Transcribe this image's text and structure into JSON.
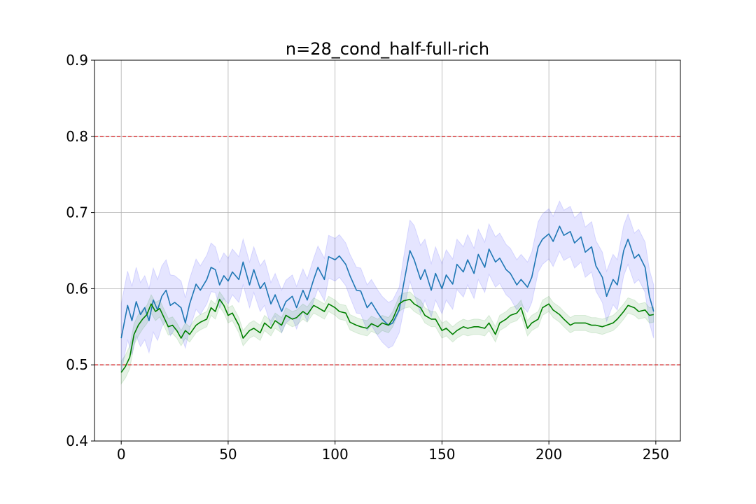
{
  "chart_data": {
    "type": "line",
    "title": "n=28_cond_half-full-rich",
    "xlabel": "",
    "ylabel": "",
    "xlim": [
      -12.5,
      261.5
    ],
    "ylim": [
      0.4,
      0.9
    ],
    "xticks": [
      0,
      50,
      100,
      150,
      200,
      250
    ],
    "yticks": [
      0.4,
      0.5,
      0.6,
      0.7,
      0.8,
      0.9
    ],
    "grid": true,
    "legend": "none",
    "reference_lines": [
      {
        "y": 0.8,
        "color": "#d62728",
        "style": "dashed"
      },
      {
        "y": 0.5,
        "color": "#d62728",
        "style": "dashed"
      }
    ],
    "series": [
      {
        "color": "#1f77b4",
        "band_color": "#0000ff",
        "x": [
          0,
          3,
          5,
          7,
          9,
          11,
          13,
          15,
          17,
          19,
          21,
          23,
          25,
          28,
          30,
          32,
          35,
          37,
          40,
          42,
          44,
          46,
          48,
          50,
          52,
          55,
          57,
          60,
          62,
          65,
          67,
          70,
          72,
          75,
          77,
          80,
          82,
          85,
          87,
          90,
          92,
          95,
          97,
          100,
          102,
          105,
          107,
          110,
          112,
          115,
          117,
          120,
          122,
          125,
          127,
          130,
          132,
          135,
          137,
          140,
          142,
          145,
          147,
          150,
          152,
          155,
          157,
          160,
          162,
          165,
          167,
          170,
          172,
          175,
          177,
          180,
          182,
          185,
          187,
          190,
          192,
          195,
          197,
          200,
          202,
          205,
          207,
          210,
          212,
          215,
          217,
          220,
          222,
          225,
          227,
          230,
          232,
          235,
          237,
          240,
          242,
          245,
          247,
          249
        ],
        "values": [
          0.535,
          0.578,
          0.558,
          0.583,
          0.566,
          0.575,
          0.558,
          0.585,
          0.572,
          0.59,
          0.598,
          0.578,
          0.582,
          0.575,
          0.555,
          0.58,
          0.606,
          0.598,
          0.612,
          0.628,
          0.625,
          0.605,
          0.617,
          0.61,
          0.622,
          0.612,
          0.635,
          0.605,
          0.625,
          0.6,
          0.608,
          0.58,
          0.592,
          0.57,
          0.583,
          0.59,
          0.575,
          0.598,
          0.585,
          0.612,
          0.628,
          0.612,
          0.642,
          0.638,
          0.643,
          0.632,
          0.617,
          0.598,
          0.597,
          0.575,
          0.582,
          0.568,
          0.56,
          0.552,
          0.555,
          0.572,
          0.605,
          0.65,
          0.638,
          0.612,
          0.625,
          0.598,
          0.62,
          0.6,
          0.618,
          0.606,
          0.632,
          0.622,
          0.638,
          0.62,
          0.645,
          0.628,
          0.652,
          0.635,
          0.64,
          0.625,
          0.62,
          0.605,
          0.612,
          0.602,
          0.615,
          0.655,
          0.665,
          0.672,
          0.662,
          0.682,
          0.67,
          0.675,
          0.66,
          0.668,
          0.648,
          0.655,
          0.63,
          0.615,
          0.59,
          0.612,
          0.605,
          0.65,
          0.665,
          0.64,
          0.645,
          0.628,
          0.59,
          0.57
        ],
        "band_halfwidth": [
          0.045,
          0.045,
          0.045,
          0.045,
          0.042,
          0.042,
          0.042,
          0.042,
          0.04,
          0.04,
          0.04,
          0.04,
          0.035,
          0.035,
          0.033,
          0.033,
          0.033,
          0.032,
          0.032,
          0.032,
          0.03,
          0.03,
          0.03,
          0.03,
          0.03,
          0.03,
          0.03,
          0.03,
          0.03,
          0.03,
          0.03,
          0.028,
          0.028,
          0.028,
          0.028,
          0.028,
          0.028,
          0.028,
          0.028,
          0.028,
          0.028,
          0.028,
          0.028,
          0.028,
          0.028,
          0.028,
          0.028,
          0.03,
          0.03,
          0.03,
          0.03,
          0.03,
          0.03,
          0.03,
          0.03,
          0.03,
          0.035,
          0.04,
          0.045,
          0.045,
          0.04,
          0.035,
          0.035,
          0.033,
          0.033,
          0.033,
          0.033,
          0.033,
          0.033,
          0.033,
          0.033,
          0.033,
          0.033,
          0.033,
          0.033,
          0.033,
          0.033,
          0.033,
          0.033,
          0.033,
          0.033,
          0.033,
          0.033,
          0.033,
          0.033,
          0.033,
          0.033,
          0.033,
          0.033,
          0.033,
          0.033,
          0.033,
          0.033,
          0.033,
          0.033,
          0.033,
          0.033,
          0.033,
          0.033,
          0.033,
          0.033,
          0.033,
          0.035,
          0.035
        ]
      },
      {
        "color": "#008000",
        "band_color": "#008000",
        "x": [
          0,
          2,
          4,
          6,
          8,
          10,
          12,
          14,
          16,
          18,
          20,
          22,
          24,
          26,
          28,
          30,
          32,
          35,
          37,
          40,
          42,
          44,
          46,
          48,
          50,
          52,
          55,
          57,
          60,
          62,
          65,
          67,
          70,
          72,
          75,
          77,
          80,
          82,
          85,
          87,
          90,
          92,
          95,
          97,
          100,
          102,
          105,
          107,
          110,
          112,
          115,
          117,
          120,
          122,
          125,
          127,
          130,
          132,
          135,
          137,
          140,
          142,
          145,
          147,
          150,
          152,
          155,
          157,
          160,
          162,
          165,
          167,
          170,
          172,
          175,
          177,
          180,
          182,
          185,
          187,
          190,
          192,
          195,
          197,
          200,
          202,
          205,
          207,
          210,
          212,
          215,
          217,
          220,
          222,
          225,
          227,
          230,
          232,
          235,
          237,
          240,
          242,
          245,
          247,
          249
        ],
        "values": [
          0.49,
          0.498,
          0.51,
          0.54,
          0.552,
          0.56,
          0.566,
          0.58,
          0.57,
          0.574,
          0.562,
          0.55,
          0.552,
          0.545,
          0.535,
          0.545,
          0.54,
          0.552,
          0.556,
          0.56,
          0.575,
          0.57,
          0.586,
          0.578,
          0.565,
          0.568,
          0.552,
          0.535,
          0.545,
          0.548,
          0.542,
          0.555,
          0.548,
          0.558,
          0.552,
          0.565,
          0.56,
          0.562,
          0.57,
          0.566,
          0.578,
          0.575,
          0.57,
          0.58,
          0.575,
          0.57,
          0.568,
          0.556,
          0.552,
          0.55,
          0.548,
          0.554,
          0.55,
          0.555,
          0.552,
          0.56,
          0.58,
          0.584,
          0.586,
          0.58,
          0.575,
          0.565,
          0.56,
          0.56,
          0.545,
          0.548,
          0.54,
          0.545,
          0.55,
          0.548,
          0.55,
          0.55,
          0.548,
          0.555,
          0.54,
          0.555,
          0.56,
          0.565,
          0.568,
          0.575,
          0.548,
          0.555,
          0.56,
          0.575,
          0.58,
          0.572,
          0.566,
          0.56,
          0.552,
          0.555,
          0.555,
          0.555,
          0.552,
          0.552,
          0.55,
          0.552,
          0.555,
          0.56,
          0.57,
          0.578,
          0.575,
          0.57,
          0.572,
          0.565,
          0.566
        ],
        "band_halfwidth": [
          0.015,
          0.015,
          0.015,
          0.014,
          0.014,
          0.013,
          0.012,
          0.012,
          0.012,
          0.011,
          0.011,
          0.011,
          0.011,
          0.01,
          0.01,
          0.01,
          0.01,
          0.01,
          0.01,
          0.01,
          0.01,
          0.01,
          0.01,
          0.01,
          0.01,
          0.01,
          0.01,
          0.01,
          0.01,
          0.01,
          0.01,
          0.01,
          0.01,
          0.01,
          0.01,
          0.01,
          0.01,
          0.01,
          0.01,
          0.01,
          0.01,
          0.01,
          0.01,
          0.01,
          0.01,
          0.01,
          0.01,
          0.01,
          0.01,
          0.01,
          0.01,
          0.01,
          0.01,
          0.01,
          0.01,
          0.01,
          0.01,
          0.01,
          0.01,
          0.01,
          0.01,
          0.01,
          0.01,
          0.01,
          0.01,
          0.01,
          0.01,
          0.01,
          0.01,
          0.01,
          0.01,
          0.01,
          0.01,
          0.01,
          0.01,
          0.01,
          0.01,
          0.01,
          0.01,
          0.01,
          0.01,
          0.01,
          0.01,
          0.01,
          0.01,
          0.01,
          0.01,
          0.01,
          0.01,
          0.01,
          0.01,
          0.01,
          0.01,
          0.01,
          0.01,
          0.01,
          0.01,
          0.01,
          0.01,
          0.01,
          0.01,
          0.01,
          0.01,
          0.01,
          0.01
        ]
      }
    ]
  }
}
